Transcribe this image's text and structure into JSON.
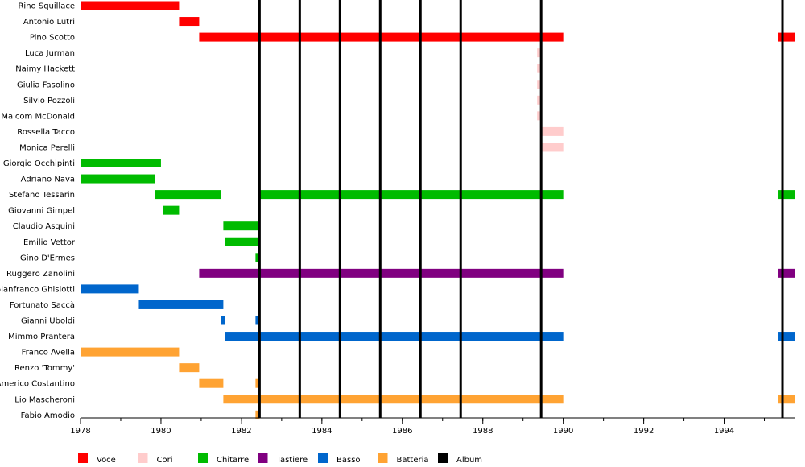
{
  "chart_data": {
    "type": "bar",
    "orientation": "horizontal-timeline",
    "xlim": [
      1978,
      1995.75
    ],
    "x_ticks": [
      "1978",
      "1980",
      "1982",
      "1984",
      "1986",
      "1988",
      "1990",
      "1992",
      "1994"
    ],
    "x_minor_step": 1,
    "colors": {
      "Voce": "#ff0000",
      "Cori": "#ffcccc",
      "Chitarre": "#00bb00",
      "Tastiere": "#800080",
      "Basso": "#0066cc",
      "Batteria": "#ffa333",
      "Album": "#000000"
    },
    "legend": [
      "Voce",
      "Cori",
      "Chitarre",
      "Tastiere",
      "Basso",
      "Batteria",
      "Album"
    ],
    "legend_position": "bottom",
    "albums": [
      1982.45,
      1983.45,
      1984.45,
      1985.45,
      1986.45,
      1987.45,
      1989.45,
      1995.45
    ],
    "members": [
      {
        "name": "Rino Squillace",
        "periods": [
          {
            "role": "Voce",
            "start": 1978,
            "end": 1980.45
          }
        ]
      },
      {
        "name": "Antonio Lutri",
        "periods": [
          {
            "role": "Voce",
            "start": 1980.45,
            "end": 1980.95
          }
        ]
      },
      {
        "name": "Pino Scotto",
        "periods": [
          {
            "role": "Voce",
            "start": 1980.95,
            "end": 1990.0
          },
          {
            "role": "Voce",
            "start": 1995.35,
            "end": 1995.75
          }
        ]
      },
      {
        "name": "Luca Jurman",
        "periods": [
          {
            "role": "Cori",
            "start": 1989.35,
            "end": 1989.45
          }
        ]
      },
      {
        "name": "Naimy Hackett",
        "periods": [
          {
            "role": "Cori",
            "start": 1989.35,
            "end": 1989.45
          }
        ]
      },
      {
        "name": "Giulia Fasolino",
        "periods": [
          {
            "role": "Cori",
            "start": 1989.35,
            "end": 1989.45
          }
        ]
      },
      {
        "name": "Silvio Pozzoli",
        "periods": [
          {
            "role": "Cori",
            "start": 1989.35,
            "end": 1989.45
          }
        ]
      },
      {
        "name": "Malcom McDonald",
        "periods": [
          {
            "role": "Cori",
            "start": 1989.35,
            "end": 1989.45
          }
        ]
      },
      {
        "name": "Rossella Tacco",
        "periods": [
          {
            "role": "Cori",
            "start": 1989.45,
            "end": 1990.0
          }
        ]
      },
      {
        "name": "Monica Perelli",
        "periods": [
          {
            "role": "Cori",
            "start": 1989.45,
            "end": 1990.0
          }
        ]
      },
      {
        "name": "Giorgio Occhipinti",
        "periods": [
          {
            "role": "Chitarre",
            "start": 1978,
            "end": 1980.0
          }
        ]
      },
      {
        "name": "Adriano Nava",
        "periods": [
          {
            "role": "Chitarre",
            "start": 1978,
            "end": 1979.85
          }
        ]
      },
      {
        "name": "Stefano Tessarin",
        "periods": [
          {
            "role": "Chitarre",
            "start": 1979.85,
            "end": 1981.5
          },
          {
            "role": "Chitarre",
            "start": 1982.45,
            "end": 1990.0
          },
          {
            "role": "Chitarre",
            "start": 1995.35,
            "end": 1995.75
          }
        ]
      },
      {
        "name": "Giovanni Gimpel",
        "periods": [
          {
            "role": "Chitarre",
            "start": 1980.05,
            "end": 1980.45
          }
        ]
      },
      {
        "name": "Claudio Asquini",
        "periods": [
          {
            "role": "Chitarre",
            "start": 1981.55,
            "end": 1982.45
          }
        ]
      },
      {
        "name": "Emilio Vettor",
        "periods": [
          {
            "role": "Chitarre",
            "start": 1981.6,
            "end": 1982.45
          }
        ]
      },
      {
        "name": "Gino D'Ermes",
        "periods": [
          {
            "role": "Chitarre",
            "start": 1982.35,
            "end": 1982.45
          }
        ]
      },
      {
        "name": "Ruggero Zanolini",
        "periods": [
          {
            "role": "Tastiere",
            "start": 1980.95,
            "end": 1990.0
          },
          {
            "role": "Tastiere",
            "start": 1995.35,
            "end": 1995.75
          }
        ]
      },
      {
        "name": "Gianfranco Ghislotti",
        "periods": [
          {
            "role": "Basso",
            "start": 1978,
            "end": 1979.45
          }
        ]
      },
      {
        "name": "Fortunato Saccà",
        "periods": [
          {
            "role": "Basso",
            "start": 1979.45,
            "end": 1981.55
          }
        ]
      },
      {
        "name": "Gianni Uboldi",
        "periods": [
          {
            "role": "Basso",
            "start": 1981.5,
            "end": 1981.6
          },
          {
            "role": "Basso",
            "start": 1982.35,
            "end": 1982.45
          }
        ]
      },
      {
        "name": "Mimmo Prantera",
        "periods": [
          {
            "role": "Basso",
            "start": 1981.6,
            "end": 1990.0
          },
          {
            "role": "Basso",
            "start": 1995.35,
            "end": 1995.75
          }
        ]
      },
      {
        "name": "Franco Avella",
        "periods": [
          {
            "role": "Batteria",
            "start": 1978,
            "end": 1980.45
          }
        ]
      },
      {
        "name": "Renzo 'Tommy'",
        "periods": [
          {
            "role": "Batteria",
            "start": 1980.45,
            "end": 1980.95
          }
        ]
      },
      {
        "name": "Americo Costantino",
        "periods": [
          {
            "role": "Batteria",
            "start": 1980.95,
            "end": 1981.55
          },
          {
            "role": "Batteria",
            "start": 1982.35,
            "end": 1982.45
          }
        ]
      },
      {
        "name": "Lio Mascheroni",
        "periods": [
          {
            "role": "Batteria",
            "start": 1981.55,
            "end": 1990.0
          },
          {
            "role": "Batteria",
            "start": 1995.35,
            "end": 1995.75
          }
        ]
      },
      {
        "name": "Fabio Amodio",
        "periods": [
          {
            "role": "Batteria",
            "start": 1982.35,
            "end": 1982.45
          }
        ]
      }
    ]
  }
}
